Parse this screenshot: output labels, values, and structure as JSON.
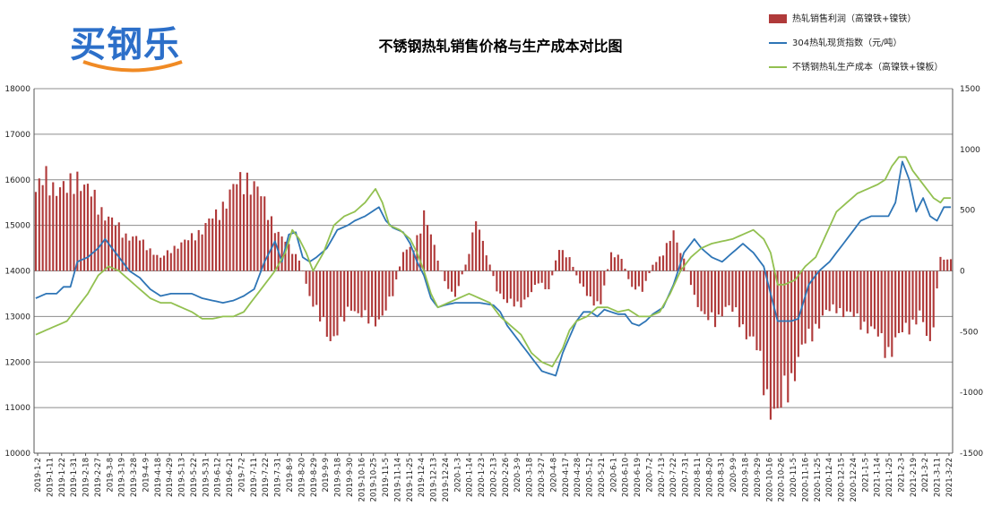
{
  "title": "不锈钢热轧销售价格与生产成本对比图",
  "brand": {
    "logo_text": "买钢乐"
  },
  "colors": {
    "profit": "#b03a3a",
    "price": "#2e75b6",
    "cost": "#92c050",
    "grid": "#8c8c8c"
  },
  "chart_data": {
    "type": "bar+line",
    "title": "不锈钢热轧销售价格与生产成本对比图",
    "legend": {
      "placement": "top-right"
    },
    "grid": true,
    "y_left": {
      "range": [
        10000,
        18000
      ],
      "ticks": [
        "10000",
        "11000",
        "12000",
        "13000",
        "14000",
        "15000",
        "16000",
        "17000",
        "18000"
      ]
    },
    "y_right": {
      "range": [
        -1500,
        1500
      ],
      "ticks": [
        "-1500",
        "-1000",
        "-500",
        "0",
        "500",
        "1000",
        "1500"
      ]
    },
    "x_ticks": [
      "2019-1-2",
      "2019-1-11",
      "2019-1-22",
      "2019-1-31",
      "2019-2-18",
      "2019-2-27",
      "2019-3-8",
      "2019-3-19",
      "2019-3-28",
      "2019-4-9",
      "2019-4-18",
      "2019-4-29",
      "2019-5-13",
      "2019-5-22",
      "2019-5-31",
      "2019-6-12",
      "2019-6-21",
      "2019-7-2",
      "2019-7-11",
      "2019-7-22",
      "2019-7-31",
      "2019-8-9",
      "2019-8-20",
      "2019-8-29",
      "2019-9-9",
      "2019-9-18",
      "2019-9-30",
      "2019-10-16",
      "2019-10-25",
      "2019-11-5",
      "2019-11-14",
      "2019-11-25",
      "2019-12-4",
      "2019-12-13",
      "2019-12-24",
      "2020-1-3",
      "2020-1-14",
      "2020-1-23",
      "2020-2-13",
      "2020-2-26",
      "2020-3-9",
      "2020-3-18",
      "2020-3-27",
      "2020-4-8",
      "2020-4-17",
      "2020-4-28",
      "2020-5-12",
      "2020-5-21",
      "2020-6-1",
      "2020-6-10",
      "2020-6-19",
      "2020-7-2",
      "2020-7-13",
      "2020-7-22",
      "2020-7-31",
      "2020-8-11",
      "2020-8-20",
      "2020-8-31",
      "2020-9-9",
      "2020-9-18",
      "2020-9-29",
      "2020-10-16",
      "2020-10-26",
      "2020-11-5",
      "2020-11-16",
      "2020-11-25",
      "2020-12-4",
      "2020-12-15",
      "2020-12-24",
      "2021-1-5",
      "2021-1-14",
      "2021-1-25",
      "2021-2-3",
      "2021-2-19",
      "2021-3-2",
      "2021-3-11",
      "2021-3-22"
    ],
    "series": [
      {
        "name": "热轧销售利润（高镍铁+镍铁）",
        "type": "bar",
        "axis": "right",
        "anchors": [
          [
            0,
            650
          ],
          [
            3,
            750
          ],
          [
            6,
            700
          ],
          [
            9,
            650
          ],
          [
            12,
            800
          ],
          [
            15,
            650
          ],
          [
            18,
            550
          ],
          [
            22,
            400
          ],
          [
            26,
            300
          ],
          [
            30,
            250
          ],
          [
            33,
            180
          ],
          [
            36,
            100
          ],
          [
            40,
            200
          ],
          [
            44,
            250
          ],
          [
            48,
            350
          ],
          [
            52,
            450
          ],
          [
            55,
            600
          ],
          [
            58,
            700
          ],
          [
            61,
            780
          ],
          [
            64,
            650
          ],
          [
            67,
            500
          ],
          [
            70,
            300
          ],
          [
            73,
            200
          ],
          [
            76,
            100
          ],
          [
            79,
            -200
          ],
          [
            82,
            -400
          ],
          [
            85,
            -550
          ],
          [
            88,
            -450
          ],
          [
            91,
            -300
          ],
          [
            94,
            -350
          ],
          [
            97,
            -450
          ],
          [
            100,
            -350
          ],
          [
            103,
            -200
          ],
          [
            106,
            150
          ],
          [
            109,
            200
          ],
          [
            112,
            450
          ],
          [
            115,
            200
          ],
          [
            118,
            -100
          ],
          [
            121,
            -200
          ],
          [
            124,
            50
          ],
          [
            127,
            400
          ],
          [
            130,
            150
          ],
          [
            133,
            -150
          ],
          [
            136,
            -250
          ],
          [
            139,
            -300
          ],
          [
            142,
            -200
          ],
          [
            145,
            -100
          ],
          [
            148,
            -150
          ],
          [
            151,
            200
          ],
          [
            154,
            100
          ],
          [
            157,
            -100
          ],
          [
            160,
            -250
          ],
          [
            163,
            -250
          ],
          [
            166,
            150
          ],
          [
            169,
            100
          ],
          [
            172,
            -150
          ],
          [
            175,
            -150
          ],
          [
            178,
            50
          ],
          [
            181,
            150
          ],
          [
            184,
            300
          ],
          [
            187,
            100
          ],
          [
            190,
            -200
          ],
          [
            193,
            -400
          ],
          [
            196,
            -400
          ],
          [
            199,
            -300
          ],
          [
            202,
            -350
          ],
          [
            205,
            -500
          ],
          [
            208,
            -650
          ],
          [
            211,
            -1000
          ],
          [
            214,
            -1250
          ],
          [
            216,
            -1000
          ],
          [
            219,
            -800
          ],
          [
            222,
            -600
          ],
          [
            225,
            -450
          ],
          [
            228,
            -350
          ],
          [
            231,
            -300
          ],
          [
            234,
            -350
          ],
          [
            237,
            -400
          ],
          [
            240,
            -450
          ],
          [
            243,
            -550
          ],
          [
            246,
            -650
          ],
          [
            249,
            -550
          ],
          [
            252,
            -450
          ],
          [
            255,
            -350
          ],
          [
            258,
            -650
          ],
          [
            261,
            100
          ]
        ]
      },
      {
        "name": "304热轧现货指数（元/吨）",
        "type": "line",
        "axis": "left",
        "anchors": [
          [
            0,
            13400
          ],
          [
            3,
            13500
          ],
          [
            6,
            13500
          ],
          [
            8,
            13650
          ],
          [
            10,
            13650
          ],
          [
            12,
            14200
          ],
          [
            15,
            14300
          ],
          [
            18,
            14500
          ],
          [
            20,
            14700
          ],
          [
            23,
            14400
          ],
          [
            25,
            14200
          ],
          [
            27,
            14000
          ],
          [
            30,
            13850
          ],
          [
            33,
            13600
          ],
          [
            36,
            13450
          ],
          [
            39,
            13500
          ],
          [
            42,
            13500
          ],
          [
            45,
            13500
          ],
          [
            48,
            13400
          ],
          [
            51,
            13350
          ],
          [
            54,
            13300
          ],
          [
            57,
            13350
          ],
          [
            60,
            13450
          ],
          [
            63,
            13600
          ],
          [
            66,
            14200
          ],
          [
            69,
            14650
          ],
          [
            71,
            14200
          ],
          [
            73,
            14800
          ],
          [
            75,
            14850
          ],
          [
            77,
            14300
          ],
          [
            79,
            14200
          ],
          [
            81,
            14300
          ],
          [
            84,
            14500
          ],
          [
            87,
            14900
          ],
          [
            90,
            15000
          ],
          [
            92,
            15100
          ],
          [
            95,
            15200
          ],
          [
            97,
            15300
          ],
          [
            99,
            15400
          ],
          [
            101,
            15100
          ],
          [
            103,
            14950
          ],
          [
            106,
            14850
          ],
          [
            108,
            14600
          ],
          [
            110,
            14200
          ],
          [
            112,
            13900
          ],
          [
            114,
            13400
          ],
          [
            116,
            13200
          ],
          [
            118,
            13250
          ],
          [
            121,
            13300
          ],
          [
            124,
            13300
          ],
          [
            128,
            13300
          ],
          [
            132,
            13250
          ],
          [
            134,
            13100
          ],
          [
            136,
            12800
          ],
          [
            138,
            12600
          ],
          [
            140,
            12400
          ],
          [
            142,
            12200
          ],
          [
            144,
            12000
          ],
          [
            146,
            11800
          ],
          [
            148,
            11750
          ],
          [
            150,
            11700
          ],
          [
            152,
            12200
          ],
          [
            154,
            12550
          ],
          [
            156,
            12900
          ],
          [
            158,
            13100
          ],
          [
            160,
            13100
          ],
          [
            162,
            13000
          ],
          [
            164,
            13150
          ],
          [
            166,
            13100
          ],
          [
            168,
            13050
          ],
          [
            170,
            13050
          ],
          [
            172,
            12850
          ],
          [
            174,
            12800
          ],
          [
            176,
            12900
          ],
          [
            178,
            13050
          ],
          [
            181,
            13200
          ],
          [
            184,
            13700
          ],
          [
            187,
            14400
          ],
          [
            190,
            14700
          ],
          [
            192,
            14500
          ],
          [
            195,
            14300
          ],
          [
            198,
            14200
          ],
          [
            201,
            14400
          ],
          [
            204,
            14600
          ],
          [
            207,
            14400
          ],
          [
            210,
            14100
          ],
          [
            212,
            13500
          ],
          [
            214,
            12900
          ],
          [
            216,
            12900
          ],
          [
            218,
            12900
          ],
          [
            220,
            12950
          ],
          [
            223,
            13700
          ],
          [
            226,
            14000
          ],
          [
            229,
            14200
          ],
          [
            232,
            14500
          ],
          [
            235,
            14800
          ],
          [
            238,
            15100
          ],
          [
            241,
            15200
          ],
          [
            244,
            15200
          ],
          [
            246,
            15200
          ],
          [
            248,
            15500
          ],
          [
            250,
            16400
          ],
          [
            252,
            16000
          ],
          [
            254,
            15300
          ],
          [
            256,
            15600
          ],
          [
            258,
            15200
          ],
          [
            260,
            15100
          ],
          [
            262,
            15400
          ],
          [
            264,
            15400
          ]
        ]
      },
      {
        "name": "不锈钢热轧生产成本（高镍铁+镍板）",
        "type": "line",
        "axis": "left",
        "anchors": [
          [
            0,
            12600
          ],
          [
            3,
            12700
          ],
          [
            6,
            12800
          ],
          [
            9,
            12900
          ],
          [
            12,
            13200
          ],
          [
            15,
            13500
          ],
          [
            18,
            13900
          ],
          [
            21,
            14100
          ],
          [
            24,
            14000
          ],
          [
            27,
            13800
          ],
          [
            30,
            13600
          ],
          [
            33,
            13400
          ],
          [
            36,
            13300
          ],
          [
            39,
            13300
          ],
          [
            42,
            13200
          ],
          [
            45,
            13100
          ],
          [
            48,
            12950
          ],
          [
            51,
            12950
          ],
          [
            54,
            13000
          ],
          [
            57,
            13000
          ],
          [
            60,
            13100
          ],
          [
            63,
            13400
          ],
          [
            66,
            13700
          ],
          [
            69,
            14000
          ],
          [
            72,
            14400
          ],
          [
            74,
            14900
          ],
          [
            76,
            14700
          ],
          [
            78,
            14400
          ],
          [
            80,
            14000
          ],
          [
            83,
            14400
          ],
          [
            86,
            15000
          ],
          [
            89,
            15200
          ],
          [
            92,
            15300
          ],
          [
            95,
            15500
          ],
          [
            98,
            15800
          ],
          [
            100,
            15500
          ],
          [
            102,
            15000
          ],
          [
            105,
            14900
          ],
          [
            108,
            14700
          ],
          [
            110,
            14400
          ],
          [
            112,
            14000
          ],
          [
            114,
            13500
          ],
          [
            116,
            13200
          ],
          [
            119,
            13300
          ],
          [
            122,
            13400
          ],
          [
            125,
            13500
          ],
          [
            128,
            13400
          ],
          [
            131,
            13300
          ],
          [
            134,
            13000
          ],
          [
            137,
            12800
          ],
          [
            140,
            12600
          ],
          [
            143,
            12200
          ],
          [
            146,
            12000
          ],
          [
            149,
            11900
          ],
          [
            152,
            12300
          ],
          [
            154,
            12700
          ],
          [
            156,
            12900
          ],
          [
            159,
            13000
          ],
          [
            162,
            13200
          ],
          [
            165,
            13200
          ],
          [
            168,
            13100
          ],
          [
            171,
            13150
          ],
          [
            174,
            13000
          ],
          [
            177,
            13000
          ],
          [
            180,
            13100
          ],
          [
            183,
            13500
          ],
          [
            186,
            14000
          ],
          [
            189,
            14300
          ],
          [
            192,
            14500
          ],
          [
            195,
            14600
          ],
          [
            198,
            14650
          ],
          [
            201,
            14700
          ],
          [
            204,
            14800
          ],
          [
            207,
            14900
          ],
          [
            210,
            14700
          ],
          [
            212,
            14400
          ],
          [
            214,
            13700
          ],
          [
            216,
            13700
          ],
          [
            219,
            13800
          ],
          [
            222,
            14100
          ],
          [
            225,
            14300
          ],
          [
            228,
            14800
          ],
          [
            231,
            15300
          ],
          [
            234,
            15500
          ],
          [
            237,
            15700
          ],
          [
            240,
            15800
          ],
          [
            243,
            15900
          ],
          [
            245,
            16000
          ],
          [
            247,
            16300
          ],
          [
            249,
            16500
          ],
          [
            251,
            16500
          ],
          [
            253,
            16200
          ],
          [
            255,
            16000
          ],
          [
            257,
            15800
          ],
          [
            259,
            15600
          ],
          [
            261,
            15500
          ],
          [
            262,
            15600
          ]
        ]
      }
    ]
  }
}
